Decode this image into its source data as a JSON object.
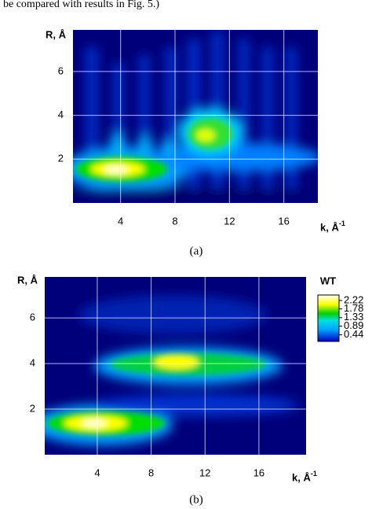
{
  "intro_text": "be compared with results in Fig. 5.)",
  "panels": [
    {
      "caption": "(a)",
      "y_label": "R, Å",
      "x_label": "k, Å",
      "x_label_sup": "-1",
      "xlim": [
        0.5,
        18.5
      ],
      "ylim": [
        0,
        7.9
      ],
      "xticks": [
        4,
        8,
        12,
        16
      ],
      "yticks": [
        2,
        4,
        6
      ]
    },
    {
      "caption": "(b)",
      "y_label": "R, Å",
      "x_label": "k, Å",
      "x_label_sup": "-1",
      "xlim": [
        0.1,
        19.5
      ],
      "ylim": [
        0,
        7.8
      ],
      "xticks": [
        4,
        8,
        12,
        16
      ],
      "yticks": [
        2,
        4,
        6
      ]
    }
  ],
  "colorbar": {
    "title": "WT",
    "lim": [
      0.1,
      2.5
    ],
    "ticks": [
      2.22,
      1.78,
      1.33,
      0.89,
      0.44
    ]
  }
}
